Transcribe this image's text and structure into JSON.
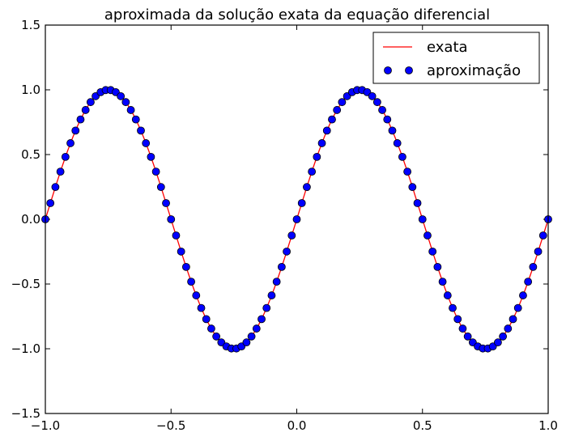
{
  "chart_data": {
    "type": "line",
    "title": "aproximada da solução exata da equação diferencial",
    "xlabel": "",
    "ylabel": "",
    "xlim": [
      -1.0,
      1.0
    ],
    "ylim": [
      -1.5,
      1.5
    ],
    "x_ticks": [
      -1.0,
      -0.5,
      0.0,
      0.5,
      1.0
    ],
    "x_tick_labels": [
      "−1.0",
      "−0.5",
      "0.0",
      "0.5",
      "1.0"
    ],
    "y_ticks": [
      -1.5,
      -1.0,
      -0.5,
      0.0,
      0.5,
      1.0,
      1.5
    ],
    "y_tick_labels": [
      "−1.5",
      "−1.0",
      "−0.5",
      "0.0",
      "0.5",
      "1.0",
      "1.5"
    ],
    "grid": false,
    "legend_position": "top-right",
    "series": [
      {
        "name": "exata",
        "style": "line",
        "color": "#ff0000",
        "function": "sin(2*pi*x)",
        "x_range": [
          -1.0,
          1.0
        ]
      },
      {
        "name": "aproximação",
        "style": "markers",
        "color": "#0000ff",
        "x": [
          -1.0,
          -0.98,
          -0.96,
          -0.94,
          -0.92,
          -0.9,
          -0.88,
          -0.86,
          -0.84,
          -0.82,
          -0.8,
          -0.78,
          -0.76,
          -0.74,
          -0.72,
          -0.7,
          -0.68,
          -0.66,
          -0.64,
          -0.62,
          -0.6,
          -0.58,
          -0.56,
          -0.54,
          -0.52,
          -0.5,
          -0.48,
          -0.46,
          -0.44,
          -0.42,
          -0.4,
          -0.38,
          -0.36,
          -0.34,
          -0.32,
          -0.3,
          -0.28,
          -0.26,
          -0.24,
          -0.22,
          -0.2,
          -0.18,
          -0.16,
          -0.14,
          -0.12,
          -0.1,
          -0.08,
          -0.06,
          -0.04,
          -0.02,
          0.0,
          0.02,
          0.04,
          0.06,
          0.08,
          0.1,
          0.12,
          0.14,
          0.16,
          0.18,
          0.2,
          0.22,
          0.24,
          0.26,
          0.28,
          0.3,
          0.32,
          0.34,
          0.36,
          0.38,
          0.4,
          0.42,
          0.44,
          0.46,
          0.48,
          0.5,
          0.52,
          0.54,
          0.56,
          0.58,
          0.6,
          0.62,
          0.64,
          0.66,
          0.68,
          0.7,
          0.72,
          0.74,
          0.76,
          0.78,
          0.8,
          0.82,
          0.84,
          0.86,
          0.88,
          0.9,
          0.92,
          0.94,
          0.96,
          0.98,
          1.0
        ],
        "y": [
          0.0,
          0.125,
          0.249,
          0.368,
          0.482,
          0.588,
          0.685,
          0.771,
          0.844,
          0.905,
          0.951,
          0.982,
          0.998,
          0.998,
          0.982,
          0.951,
          0.905,
          0.844,
          0.771,
          0.685,
          0.588,
          0.482,
          0.368,
          0.249,
          0.125,
          0.0,
          -0.125,
          -0.249,
          -0.368,
          -0.482,
          -0.588,
          -0.685,
          -0.771,
          -0.844,
          -0.905,
          -0.951,
          -0.982,
          -0.998,
          -0.998,
          -0.982,
          -0.951,
          -0.905,
          -0.844,
          -0.771,
          -0.685,
          -0.588,
          -0.482,
          -0.368,
          -0.249,
          -0.125,
          0.0,
          0.125,
          0.249,
          0.368,
          0.482,
          0.588,
          0.685,
          0.771,
          0.844,
          0.905,
          0.951,
          0.982,
          0.998,
          0.998,
          0.982,
          0.951,
          0.905,
          0.844,
          0.771,
          0.685,
          0.588,
          0.482,
          0.368,
          0.249,
          0.125,
          0.0,
          -0.125,
          -0.249,
          -0.368,
          -0.482,
          -0.588,
          -0.685,
          -0.771,
          -0.844,
          -0.905,
          -0.951,
          -0.982,
          -0.998,
          -0.998,
          -0.982,
          -0.951,
          -0.905,
          -0.844,
          -0.771,
          -0.685,
          -0.588,
          -0.482,
          -0.368,
          -0.249,
          -0.125,
          0.0
        ]
      }
    ]
  }
}
